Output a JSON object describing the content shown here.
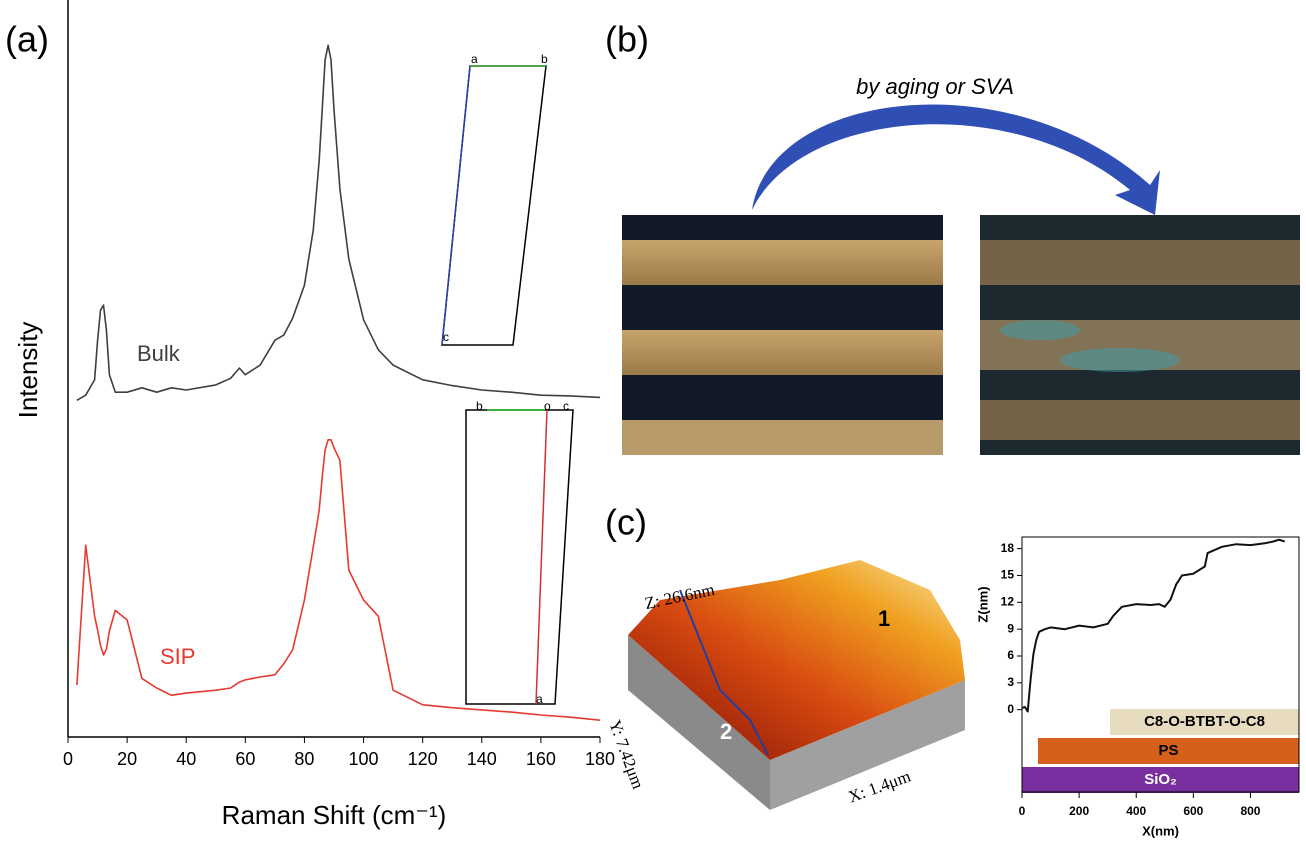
{
  "panel_labels": [
    "(a)",
    "(b)",
    "(c)"
  ],
  "panel_b": {
    "arrow_label": "by aging or SVA"
  },
  "panel_c": {
    "afm_labels": {
      "z": "Z: 26.6nm",
      "y": "Y: 7.42μm",
      "x": "X: 1.4μm",
      "point_1": "1",
      "point_2": "2"
    }
  },
  "insets": {
    "bulk": [
      "a",
      "b",
      "c"
    ],
    "sip": [
      "b",
      "o",
      "c",
      "a"
    ]
  },
  "chart_data": [
    {
      "type": "line",
      "x_label": "Raman Shift (cm⁻¹)",
      "y_label": "Intensity",
      "xlim": [
        0,
        180
      ],
      "xticks": [
        0,
        20,
        40,
        60,
        80,
        100,
        120,
        140,
        160,
        180
      ],
      "ylim": [
        0,
        100
      ],
      "x": [
        3,
        6,
        9,
        10,
        11,
        12,
        13,
        14,
        16,
        20,
        25,
        30,
        35,
        40,
        50,
        55,
        58,
        60,
        65,
        70,
        73,
        76,
        80,
        83,
        85,
        86,
        87,
        88,
        89,
        90,
        92,
        95,
        100,
        105,
        110,
        120,
        130,
        140,
        150,
        160,
        170,
        180
      ],
      "series": [
        {
          "name": "Bulk",
          "color": "#3f3f3f",
          "values": [
            46.0,
            46.7,
            48.8,
            54.2,
            58.3,
            59.0,
            55.6,
            49.5,
            47.1,
            47.1,
            47.7,
            47.1,
            47.7,
            47.4,
            48.1,
            49.0,
            50.4,
            49.5,
            50.8,
            54.2,
            54.9,
            57.2,
            61.7,
            69.3,
            78.8,
            85.7,
            92.5,
            94.5,
            92.5,
            85.7,
            74.9,
            65.3,
            57.0,
            52.9,
            50.8,
            48.8,
            48.0,
            47.4,
            47.1,
            46.7,
            46.6,
            46.4
          ]
        },
        {
          "name": "SIP",
          "color": "#e8392f",
          "values": [
            7.1,
            26.2,
            16.5,
            14.6,
            12.5,
            11.2,
            12.0,
            14.5,
            17.3,
            16.0,
            8.0,
            6.7,
            5.7,
            6.0,
            6.4,
            6.7,
            7.5,
            7.8,
            8.2,
            8.5,
            10.0,
            11.9,
            18.7,
            26.0,
            31.0,
            35.5,
            39.2,
            40.6,
            40.6,
            39.5,
            37.8,
            22.8,
            18.7,
            16.5,
            6.4,
            4.4,
            4.0,
            3.7,
            3.4,
            3.0,
            2.7,
            2.3
          ]
        }
      ]
    },
    {
      "type": "line",
      "x_label": "X(nm)",
      "y_label": "Z(nm)",
      "xlim": [
        0,
        970
      ],
      "xticks": [
        0,
        200,
        400,
        600,
        800
      ],
      "ylim": [
        -9.2,
        19.3
      ],
      "yticks": [
        0,
        3,
        6,
        9,
        12,
        15,
        18
      ],
      "x": [
        0,
        10,
        20,
        30,
        40,
        50,
        60,
        80,
        100,
        150,
        200,
        250,
        300,
        320,
        350,
        400,
        450,
        480,
        500,
        520,
        540,
        560,
        600,
        640,
        650,
        700,
        750,
        800,
        850,
        880,
        900,
        920
      ],
      "series": [
        {
          "color": "#111111",
          "values": [
            0.2,
            0.3,
            -0.2,
            3.4,
            6.2,
            7.8,
            8.7,
            9.0,
            9.2,
            9.0,
            9.4,
            9.2,
            9.6,
            10.5,
            11.5,
            11.8,
            11.7,
            11.8,
            11.5,
            12.3,
            14.0,
            15.0,
            15.2,
            16.0,
            17.5,
            18.2,
            18.5,
            18.4,
            18.6,
            18.8,
            19.0,
            18.8
          ]
        }
      ],
      "layers": [
        "C8-O-BTBT-O-C8",
        "PS",
        "SiO₂"
      ]
    }
  ]
}
